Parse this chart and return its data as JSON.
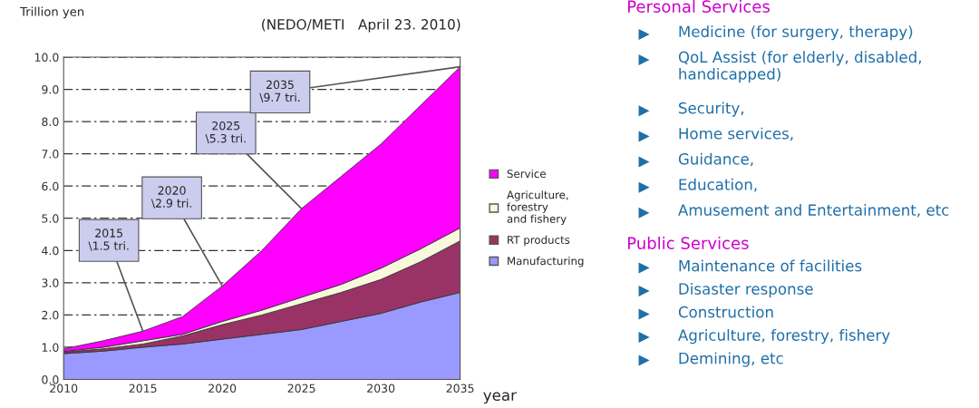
{
  "chart_data": [
    {
      "type": "area",
      "stacked": true,
      "title": "(NEDO/METI   April 23. 2010)",
      "ylabel": "Trillion yen",
      "xlabel": "year",
      "x": [
        2010,
        2012.5,
        2015,
        2017.5,
        2020,
        2022.5,
        2025,
        2027.5,
        2030,
        2032.5,
        2035
      ],
      "series": [
        {
          "name": "Manufacturing",
          "color": "#9999ff",
          "values": [
            0.8,
            0.88,
            1.0,
            1.1,
            1.25,
            1.4,
            1.55,
            1.8,
            2.05,
            2.4,
            2.7
          ]
        },
        {
          "name": "RT products",
          "color": "#993366",
          "values": [
            0.05,
            0.07,
            0.1,
            0.25,
            0.45,
            0.6,
            0.8,
            0.9,
            1.05,
            1.25,
            1.6
          ]
        },
        {
          "name": "Agriculture,\nforestry\nand fishery",
          "color": "#f8f8dc",
          "values": [
            0.02,
            0.05,
            0.1,
            0.05,
            0.1,
            0.15,
            0.2,
            0.25,
            0.35,
            0.4,
            0.4
          ]
        },
        {
          "name": "Service",
          "color": "#ff00ff",
          "values": [
            0.08,
            0.2,
            0.3,
            0.55,
            1.1,
            1.85,
            2.75,
            3.35,
            3.85,
            4.45,
            5.0
          ]
        }
      ],
      "xlim": [
        2010,
        2035
      ],
      "xticks": [
        2010,
        2015,
        2020,
        2025,
        2030,
        2035
      ],
      "ylim": [
        0,
        10
      ],
      "yticks": [
        {
          "value": 0,
          "label": "0.0"
        },
        {
          "value": 1,
          "label": "1.0"
        },
        {
          "value": 2,
          "label": "2.0"
        },
        {
          "value": 3,
          "label": "3.0"
        },
        {
          "value": 4,
          "label": "4.0"
        },
        {
          "value": 5,
          "label": "5.0"
        },
        {
          "value": 6,
          "label": "6.0"
        },
        {
          "value": 7,
          "label": "7.0"
        },
        {
          "value": 8,
          "label": "8.0"
        },
        {
          "value": 9,
          "label": "9.0"
        },
        {
          "value": 10,
          "label": "10.0"
        }
      ],
      "grid": "y",
      "line_style": "dashed",
      "legend": "right",
      "annotations": [
        {
          "text": "2015\n\\1.5 tri.",
          "x": 2015,
          "y": 1.5
        },
        {
          "text": "2020\n\\2.9 tri.",
          "x": 2020,
          "y": 2.9
        },
        {
          "text": "2025\n\\5.3 tri.",
          "x": 2025,
          "y": 5.3
        },
        {
          "text": "2035\n\\9.7 tri.",
          "x": 2035,
          "y": 9.7
        }
      ]
    },
    {
      "type": "other",
      "title": "Personal Services",
      "annotations": [
        "Medicine (for surgery, therapy)",
        "QoL Assist (for elderly, disabled, handicapped)",
        "Security,",
        "Home services,",
        "Guidance,",
        "Education,",
        "Amusement and Entertainment, etc"
      ]
    },
    {
      "type": "other",
      "title": "Public Services",
      "annotations": [
        "Maintenance of facilities",
        "Disaster response",
        "Construction",
        "Agriculture, forestry, fishery",
        "Demining, etc"
      ]
    }
  ]
}
